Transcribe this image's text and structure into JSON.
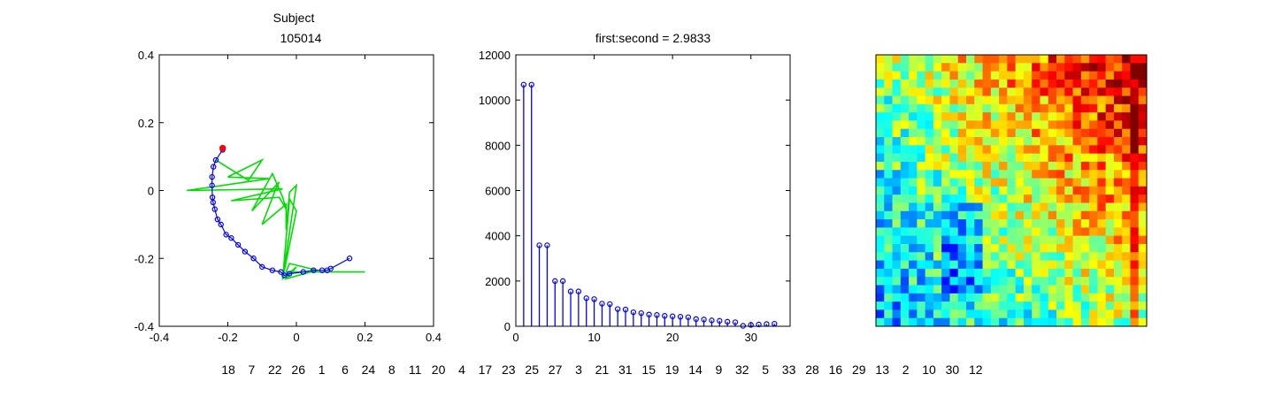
{
  "chart_data": [
    {
      "type": "scatter",
      "title_lines": [
        "Subject",
        "105014"
      ],
      "xlim": [
        -0.4,
        0.4
      ],
      "ylim": [
        -0.4,
        0.4
      ],
      "xticks": [
        "-0.4",
        "-0.2",
        "0",
        "0.2",
        "0.4"
      ],
      "yticks": [
        "-0.4",
        "-0.2",
        "0",
        "0.2",
        "0.4"
      ],
      "tick_values": [
        -0.4,
        -0.2,
        0,
        0.2,
        0.4
      ],
      "blue_series": {
        "color": "#0000ff",
        "x": [
          -0.215,
          -0.235,
          -0.242,
          -0.246,
          -0.246,
          -0.245,
          -0.243,
          -0.238,
          -0.23,
          -0.22,
          -0.205,
          -0.19,
          -0.17,
          -0.15,
          -0.125,
          -0.1,
          -0.07,
          -0.045,
          -0.035,
          -0.02,
          0.02,
          0.05,
          0.075,
          0.09,
          0.1,
          0.155
        ],
        "y": [
          0.12,
          0.09,
          0.07,
          0.04,
          0.015,
          -0.02,
          -0.035,
          -0.055,
          -0.085,
          -0.1,
          -0.13,
          -0.14,
          -0.16,
          -0.18,
          -0.2,
          -0.225,
          -0.235,
          -0.24,
          -0.25,
          -0.245,
          -0.24,
          -0.235,
          -0.235,
          -0.235,
          -0.23,
          -0.2
        ]
      },
      "red_point": {
        "x": -0.215,
        "y": 0.125,
        "color": "#ff0000"
      },
      "green_series": {
        "color": "#00dd00",
        "x": [
          -0.235,
          -0.14,
          -0.1,
          -0.2,
          -0.08,
          -0.32,
          -0.04,
          -0.19,
          -0.05,
          -0.03,
          -0.04,
          -0.07,
          -0.13,
          -0.05,
          -0.06,
          -0.1,
          -0.03,
          -0.03,
          -0.02,
          0.0,
          -0.04,
          0.0,
          -0.02,
          -0.04,
          0.0,
          -0.03,
          0.06,
          -0.02,
          -0.03,
          0.05,
          0.2
        ],
        "y": [
          0.09,
          0.03,
          0.09,
          0.04,
          0.035,
          0.0,
          0.005,
          -0.03,
          -0.02,
          -0.055,
          -0.02,
          0.05,
          -0.06,
          0.025,
          0.005,
          -0.1,
          -0.04,
          -0.115,
          -0.005,
          0.015,
          -0.26,
          -0.06,
          -0.025,
          -0.26,
          -0.225,
          -0.26,
          -0.235,
          -0.215,
          -0.24,
          -0.24,
          -0.24
        ]
      }
    },
    {
      "type": "bar",
      "title": "first:second = 2.9833",
      "xlim": [
        0,
        35
      ],
      "ylim": [
        0,
        12000
      ],
      "xticks": [
        "0",
        "10",
        "20",
        "30"
      ],
      "xtick_values": [
        0,
        10,
        20,
        30
      ],
      "yticks": [
        "0",
        "2000",
        "4000",
        "6000",
        "8000",
        "10000",
        "12000"
      ],
      "ytick_values": [
        0,
        2000,
        4000,
        6000,
        8000,
        10000,
        12000
      ],
      "color": "#0000ff",
      "x": [
        1,
        2,
        3,
        4,
        5,
        6,
        7,
        8,
        9,
        10,
        11,
        12,
        13,
        14,
        15,
        16,
        17,
        18,
        19,
        20,
        21,
        22,
        23,
        24,
        25,
        26,
        27,
        28,
        29,
        30,
        31,
        32,
        33
      ],
      "values": [
        10680,
        10680,
        3580,
        3580,
        2000,
        2000,
        1540,
        1540,
        1240,
        1200,
        1000,
        980,
        760,
        740,
        620,
        580,
        520,
        500,
        460,
        440,
        420,
        400,
        320,
        300,
        260,
        240,
        200,
        180,
        20,
        60,
        80,
        100,
        110
      ]
    },
    {
      "type": "heatmap",
      "rows": 33,
      "cols": 33,
      "colormap": [
        "#00008f",
        "#0000ff",
        "#00ffff",
        "#ffff00",
        "#ff0000",
        "#800000"
      ],
      "seed": 105014
    }
  ],
  "order_labels": [
    "18",
    "7",
    "22",
    "26",
    "1",
    "6",
    "24",
    "8",
    "11",
    "20",
    "4",
    "17",
    "23",
    "25",
    "27",
    "3",
    "21",
    "31",
    "15",
    "19",
    "14",
    "9",
    "32",
    "5",
    "33",
    "28",
    "16",
    "29",
    "13",
    "2",
    "10",
    "30",
    "12"
  ]
}
